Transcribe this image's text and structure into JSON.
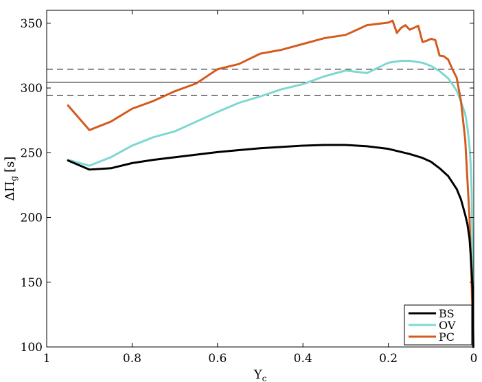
{
  "chart_data": {
    "type": "line",
    "xlabel": "Y",
    "xlabel_sub": "c",
    "ylabel": "ΔΠ",
    "ylabel_sub": "g",
    "ylabel_unit": "[s]",
    "xlim": [
      1,
      0
    ],
    "ylim": [
      100,
      360
    ],
    "x_reversed": true,
    "grid": false,
    "legend_position": "bottom-right",
    "xticks": [
      1,
      0.8,
      0.6,
      0.4,
      0.2,
      0
    ],
    "xtick_labels": [
      "1",
      "0.8",
      "0.6",
      "0.4",
      "0.2",
      "0"
    ],
    "yticks": [
      100,
      150,
      200,
      250,
      300,
      350
    ],
    "ytick_labels": [
      "100",
      "150",
      "200",
      "250",
      "300",
      "350"
    ],
    "reference_lines": [
      {
        "y": 304.5,
        "style": "solid",
        "color": "#000000"
      },
      {
        "y": 314.5,
        "style": "dashed",
        "color": "#000000"
      },
      {
        "y": 294.5,
        "style": "dashed",
        "color": "#000000"
      }
    ],
    "series": [
      {
        "name": "BS",
        "color": "#000000",
        "x": [
          0.95,
          0.9,
          0.85,
          0.8,
          0.75,
          0.7,
          0.65,
          0.6,
          0.55,
          0.5,
          0.45,
          0.4,
          0.35,
          0.3,
          0.25,
          0.2,
          0.15,
          0.12,
          0.1,
          0.08,
          0.06,
          0.04,
          0.03,
          0.02,
          0.015,
          0.01,
          0.007,
          0.005,
          0.003,
          0.002,
          0.001
        ],
        "y": [
          244,
          237,
          238,
          242,
          244.5,
          246.5,
          248.5,
          250.5,
          252,
          253.5,
          254.5,
          255.5,
          256,
          256,
          255,
          253,
          249,
          246,
          243,
          238,
          232,
          222,
          214,
          202,
          195,
          184,
          170,
          160,
          145,
          125,
          100
        ]
      },
      {
        "name": "OV",
        "color": "#7fd8d0",
        "x": [
          0.95,
          0.9,
          0.85,
          0.8,
          0.75,
          0.7,
          0.65,
          0.6,
          0.55,
          0.5,
          0.45,
          0.4,
          0.35,
          0.3,
          0.25,
          0.2,
          0.17,
          0.15,
          0.12,
          0.1,
          0.08,
          0.06,
          0.04,
          0.03,
          0.02,
          0.015,
          0.01,
          0.007,
          0.005,
          0.003,
          0.002,
          0.001
        ],
        "y": [
          244.5,
          240,
          246.5,
          255.5,
          262,
          266.5,
          274,
          281.5,
          288.5,
          293.5,
          299,
          303,
          309,
          313.5,
          311.5,
          319.5,
          321,
          321,
          319.5,
          317,
          313,
          307.5,
          298,
          289.5,
          280,
          270,
          255,
          240,
          220,
          180,
          150,
          100
        ]
      },
      {
        "name": "PC",
        "color": "#d45b1f",
        "x": [
          0.95,
          0.9,
          0.85,
          0.8,
          0.75,
          0.7,
          0.65,
          0.6,
          0.55,
          0.5,
          0.45,
          0.4,
          0.35,
          0.3,
          0.25,
          0.2,
          0.19,
          0.18,
          0.17,
          0.16,
          0.15,
          0.14,
          0.13,
          0.12,
          0.11,
          0.1,
          0.09,
          0.08,
          0.07,
          0.06,
          0.05,
          0.04,
          0.03,
          0.02,
          0.015,
          0.01,
          0.007,
          0.005,
          0.003,
          0.002,
          0.001
        ],
        "y": [
          286.5,
          267.5,
          274,
          284,
          290,
          297.5,
          303.5,
          314.5,
          318.5,
          326.5,
          329.5,
          334,
          338.5,
          341,
          348.5,
          350.5,
          352,
          342.5,
          346.5,
          348.5,
          345,
          346.5,
          348,
          335.5,
          336.5,
          338,
          337,
          325,
          324.5,
          322,
          314.5,
          308,
          290,
          260,
          230,
          200,
          170,
          150,
          125,
          110,
          100
        ]
      }
    ]
  }
}
